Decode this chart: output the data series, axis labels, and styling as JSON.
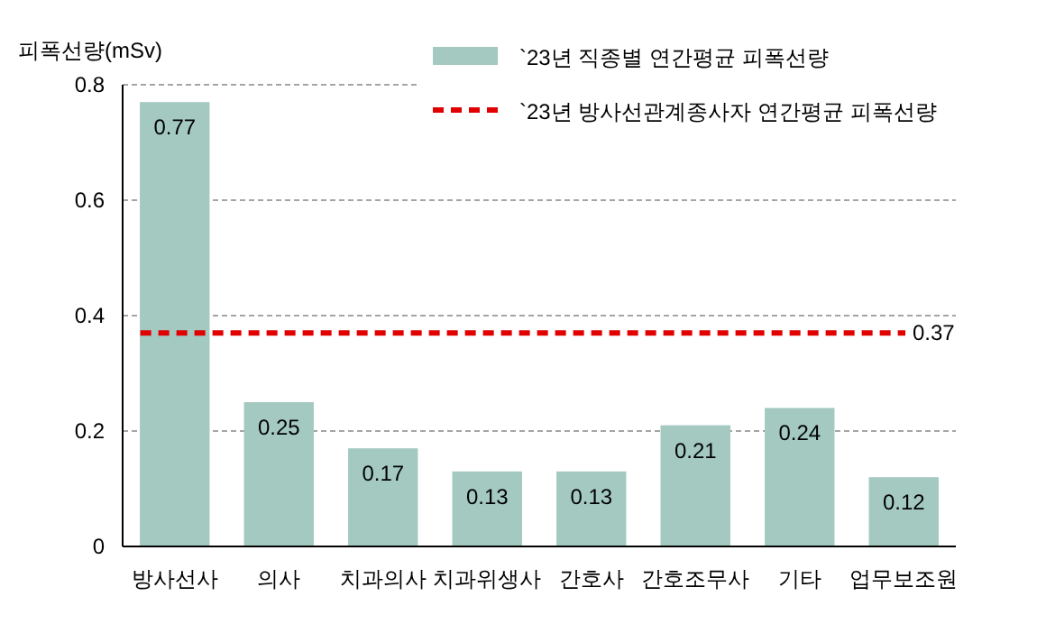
{
  "chart_data": {
    "type": "bar",
    "ylabel": "피폭선량(mSv)",
    "categories": [
      "방사선사",
      "의사",
      "치과의사",
      "치과위생사",
      "간호사",
      "간호조무사",
      "기타",
      "업무보조원"
    ],
    "series": [
      {
        "name": "`23년 직종별 연간평균 피폭선량",
        "color": "#a3c9c1",
        "values": [
          0.77,
          0.25,
          0.17,
          0.13,
          0.13,
          0.21,
          0.24,
          0.12
        ]
      }
    ],
    "ylim": [
      0,
      0.8
    ],
    "yticks": [
      0,
      0.2,
      0.4,
      0.6,
      0.8
    ],
    "grid": "y",
    "data_labels": true,
    "legend": "top right",
    "ref_lines": [
      {
        "axis": "y",
        "value": 0.37,
        "label": "`23년 방사선관계종사자 연간평균 피폭선량",
        "color": "#e00000",
        "line_style": "dashed"
      }
    ],
    "annotations": [
      "0.37"
    ]
  }
}
